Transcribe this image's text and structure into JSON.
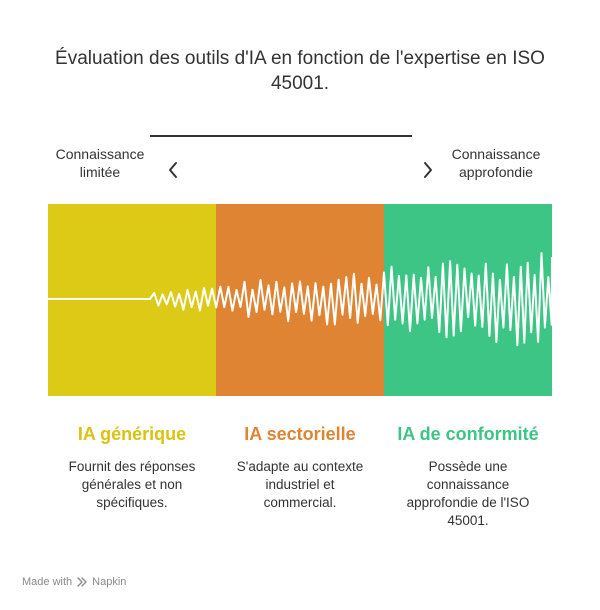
{
  "title": "Évaluation des outils d'IA en fonction de l'expertise en ISO 45001.",
  "scale": {
    "left_label": "Connaissance limitée",
    "right_label": "Connaissance approfondie",
    "left_icon": "chevron-left-icon",
    "right_icon": "chevron-right-icon"
  },
  "columns": [
    {
      "title": "IA générique",
      "description": "Fournit des réponses générales et non spécifiques.",
      "band_color": "#DCCA17",
      "title_color": "#D9C312"
    },
    {
      "title": "IA sectorielle",
      "description": "S'adapte au contexte industriel et commercial.",
      "band_color": "#DE8433",
      "title_color": "#DE8433"
    },
    {
      "title": "IA de conformité",
      "description": "Possède une connaissance approfondie de l'ISO 45001.",
      "band_color": "#3CC585",
      "title_color": "#3CC585"
    }
  ],
  "footer": {
    "made_with": "Made with",
    "brand": "Napkin",
    "brand_icon": "napkin-icon"
  }
}
